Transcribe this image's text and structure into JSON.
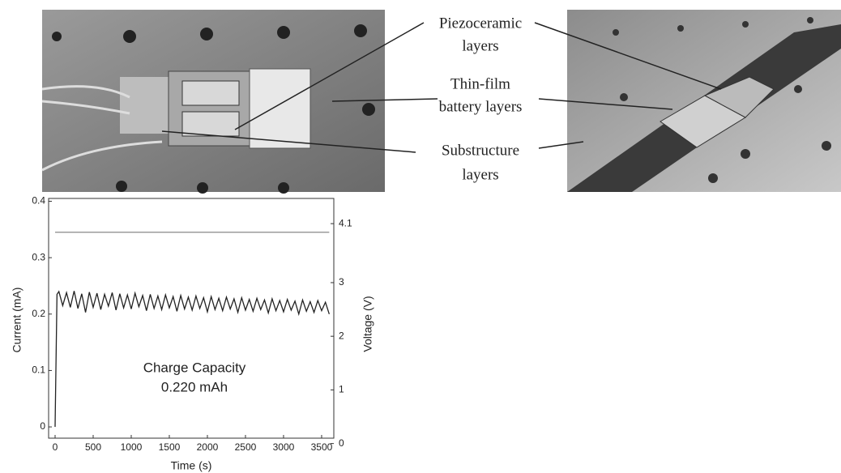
{
  "photo_labels": [
    [
      "Piezoceramic",
      "layers"
    ],
    [
      "Thin-film",
      "battery layers"
    ],
    [
      "Substructure",
      "layers"
    ]
  ],
  "chart_data": {
    "type": "line",
    "xlabel": "Time (s)",
    "ylabel": "Current (mA)",
    "y2label": "Voltage (V)",
    "annotations": [
      "Charge Capacity",
      "0.220 mAh"
    ],
    "xlim": [
      -85,
      3660
    ],
    "xticks": [
      0,
      500,
      1000,
      1500,
      2000,
      2500,
      3000,
      3500
    ],
    "ylim": [
      -0.02,
      0.405
    ],
    "yticks": [
      0,
      0.1,
      0.2,
      0.3,
      0.4
    ],
    "y2lim": [
      0.1,
      4.57
    ],
    "y2ticks": [
      0,
      1,
      2,
      3,
      4.1
    ],
    "series": [
      {
        "color": "#222222",
        "x": [
          0,
          25,
          50,
          100,
          150,
          200,
          250,
          300,
          350,
          400,
          450,
          500,
          550,
          600,
          650,
          700,
          750,
          800,
          850,
          900,
          950,
          1000,
          1050,
          1100,
          1150,
          1200,
          1250,
          1300,
          1350,
          1400,
          1450,
          1500,
          1550,
          1600,
          1650,
          1700,
          1750,
          1800,
          1850,
          1900,
          1950,
          2000,
          2050,
          2100,
          2150,
          2200,
          2250,
          2300,
          2350,
          2400,
          2450,
          2500,
          2550,
          2600,
          2650,
          2700,
          2750,
          2800,
          2850,
          2900,
          2950,
          3000,
          3050,
          3100,
          3150,
          3200,
          3250,
          3300,
          3350,
          3400,
          3450,
          3500,
          3550,
          3600
        ],
        "values": [
          0,
          0.235,
          0.24,
          0.215,
          0.238,
          0.212,
          0.241,
          0.21,
          0.236,
          0.203,
          0.239,
          0.212,
          0.237,
          0.208,
          0.235,
          0.214,
          0.238,
          0.207,
          0.236,
          0.211,
          0.234,
          0.209,
          0.237,
          0.213,
          0.233,
          0.206,
          0.235,
          0.21,
          0.232,
          0.208,
          0.234,
          0.211,
          0.231,
          0.205,
          0.233,
          0.209,
          0.23,
          0.207,
          0.232,
          0.21,
          0.229,
          0.204,
          0.231,
          0.208,
          0.228,
          0.206,
          0.23,
          0.209,
          0.227,
          0.203,
          0.229,
          0.207,
          0.226,
          0.205,
          0.228,
          0.208,
          0.225,
          0.202,
          0.227,
          0.206,
          0.224,
          0.204,
          0.226,
          0.207,
          0.223,
          0.2,
          0.225,
          0.205,
          0.222,
          0.203,
          0.224,
          0.206,
          0.221,
          0.2
        ]
      },
      {
        "color": "#888888",
        "axis": "y2",
        "x": [
          0,
          3600
        ],
        "values": [
          3.94,
          3.94
        ]
      }
    ]
  }
}
